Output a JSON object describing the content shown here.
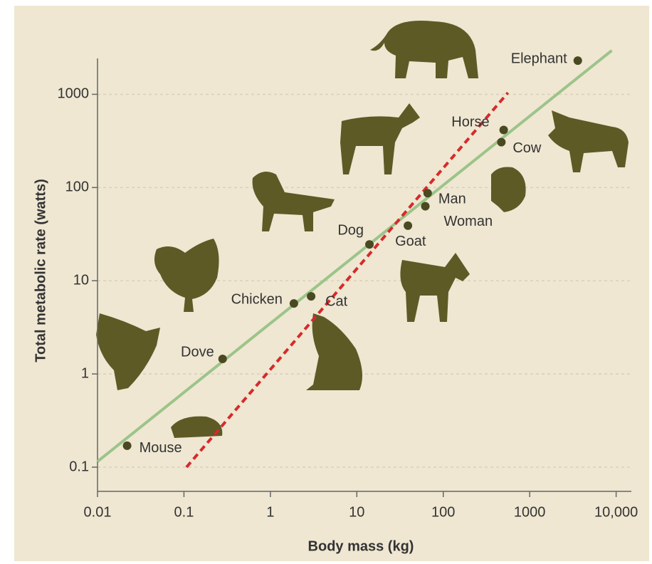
{
  "chart_data": {
    "type": "scatter",
    "x_label": "Body mass (kg)",
    "y_label": "Total metabolic rate (watts)",
    "log_x": true,
    "log_y": true,
    "grid": true,
    "xlim": [
      0.01,
      15000
    ],
    "ylim": [
      0.055,
      3000
    ],
    "xticks": [
      0.01,
      0.1,
      1,
      10,
      100,
      1000,
      {
        "value": 10000,
        "label": "10,000"
      }
    ],
    "yticks": [
      0.1,
      1,
      10,
      100,
      1000
    ],
    "point_color": "#4a4a22",
    "labels": [
      "Mouse",
      "Dove",
      "Chicken",
      "Cat",
      "Dog",
      "Goat",
      "Woman",
      "Man",
      "Cow",
      "Horse",
      "Elephant"
    ],
    "x": [
      0.022,
      0.28,
      1.87,
      2.96,
      14,
      39,
      62,
      66,
      470,
      500,
      3600
    ],
    "values": [
      0.17,
      1.45,
      5.7,
      6.8,
      24.5,
      39,
      63,
      87,
      307,
      415,
      2300
    ],
    "lines": [
      {
        "color": "#9cc48a",
        "style": "solid",
        "x": [
          0.01,
          8900
        ],
        "values": [
          0.115,
          2950
        ]
      },
      {
        "color": "#d62a2a",
        "style": "dashed",
        "x": [
          0.107,
          560
        ],
        "values": [
          0.1,
          1040
        ]
      }
    ]
  }
}
